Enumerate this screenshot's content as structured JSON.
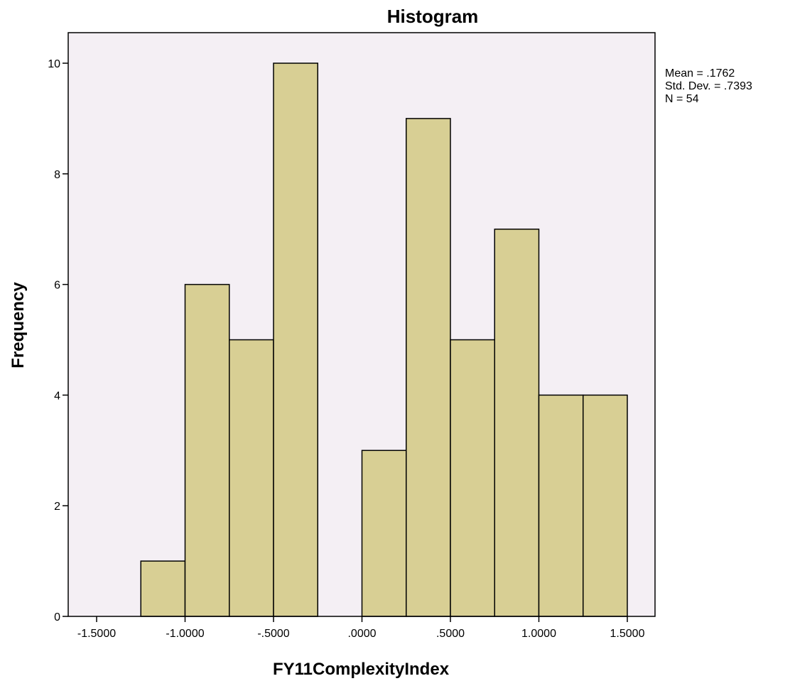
{
  "chart_data": {
    "type": "bar",
    "title": "Histogram",
    "xlabel": "FY11ComplexityIndex",
    "ylabel": "Frequency",
    "bin_edges": [
      -1.25,
      -1.0,
      -0.75,
      -0.5,
      -0.25,
      0.0,
      0.25,
      0.5,
      0.75,
      1.0,
      1.25,
      1.5
    ],
    "counts": [
      1,
      6,
      5,
      10,
      0,
      3,
      9,
      5,
      7,
      4,
      4
    ],
    "xlim": [
      -1.5,
      1.5
    ],
    "ylim": [
      0,
      10.5
    ],
    "x_ticks": [
      {
        "value": -1.5,
        "label": "-1.5000"
      },
      {
        "value": -1.0,
        "label": "-1.0000"
      },
      {
        "value": -0.5,
        "label": "-.5000"
      },
      {
        "value": 0.0,
        "label": ".0000"
      },
      {
        "value": 0.5,
        "label": ".5000"
      },
      {
        "value": 1.0,
        "label": "1.0000"
      },
      {
        "value": 1.5,
        "label": "1.5000"
      }
    ],
    "y_ticks": [
      {
        "value": 0,
        "label": "0"
      },
      {
        "value": 2,
        "label": "2"
      },
      {
        "value": 4,
        "label": "4"
      },
      {
        "value": 6,
        "label": "6"
      },
      {
        "value": 8,
        "label": "8"
      },
      {
        "value": 10,
        "label": "10"
      }
    ],
    "grid": false,
    "stats": {
      "mean": "Mean = .1762",
      "std_dev": "Std. Dev. = .7393",
      "n": "N = 54"
    }
  },
  "colors": {
    "plot_background": "#f4eff4",
    "bar_fill": "#d8cf94",
    "bar_stroke": "#000000",
    "axis": "#000000"
  }
}
